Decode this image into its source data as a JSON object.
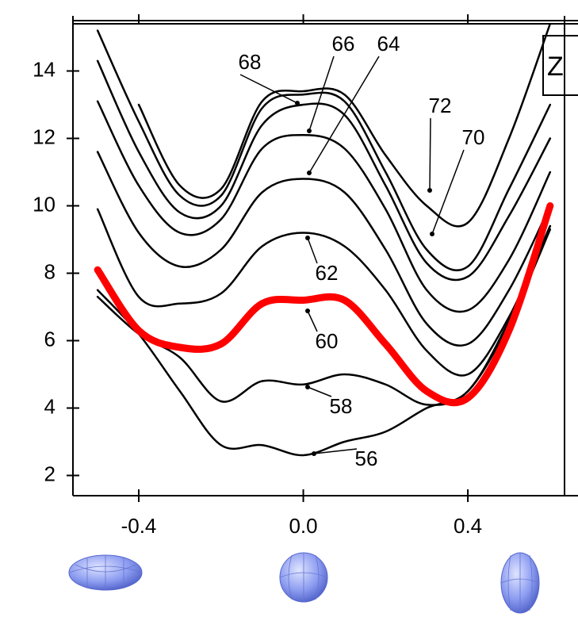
{
  "chart_data": {
    "type": "line",
    "x": [
      -0.5,
      -0.4,
      -0.3,
      -0.2,
      -0.1,
      0,
      0.1,
      0.2,
      0.3,
      0.4,
      0.5,
      0.6
    ],
    "series": [
      {
        "name": "56",
        "color": "#000000",
        "values": [
          7.5,
          6.2,
          4.5,
          2.9,
          2.9,
          2.6,
          3.0,
          3.3,
          4.0,
          4.5,
          6.5,
          9.3
        ]
      },
      {
        "name": "58",
        "color": "#000000",
        "values": [
          7.3,
          6.2,
          5.5,
          4.2,
          4.8,
          4.7,
          5.0,
          4.7,
          4.1,
          4.5,
          6.6,
          9.4
        ]
      },
      {
        "name": "60",
        "color": "#ff0000",
        "values": [
          8.1,
          6.3,
          5.8,
          5.9,
          7.1,
          7.2,
          7.2,
          5.9,
          4.5,
          4.3,
          6.3,
          10.0
        ]
      },
      {
        "name": "62",
        "color": "#000000",
        "values": [
          9.9,
          7.3,
          7.1,
          7.4,
          8.8,
          9.2,
          8.8,
          7.5,
          5.7,
          5.0,
          6.7,
          9.4
        ]
      },
      {
        "name": "64",
        "color": "#000000",
        "values": [
          11.6,
          9.2,
          8.2,
          8.7,
          10.4,
          10.8,
          10.4,
          8.7,
          6.5,
          5.9,
          7.5,
          10.0
        ]
      },
      {
        "name": "66",
        "color": "#000000",
        "values": [
          13.1,
          10.6,
          9.2,
          9.6,
          11.7,
          12.1,
          11.7,
          9.9,
          7.5,
          6.9,
          8.4,
          11.0
        ]
      },
      {
        "name": "68",
        "color": "#000000",
        "values": [
          14.3,
          11.6,
          9.8,
          10.0,
          12.4,
          13.0,
          12.7,
          10.6,
          8.3,
          7.9,
          9.7,
          12.0
        ]
      },
      {
        "name": "70",
        "color": "#000000",
        "values": [
          15.2,
          12.5,
          10.3,
          10.3,
          12.9,
          13.3,
          13.1,
          11.0,
          8.7,
          8.2,
          10.5,
          13.0
        ]
      },
      {
        "name": "72",
        "color": "#000000",
        "values": [
          null,
          13.0,
          10.6,
          10.5,
          13.1,
          13.4,
          13.3,
          11.5,
          10.0,
          9.5,
          12.0,
          15.4
        ]
      }
    ],
    "inset_label": "Z",
    "xlim": [
      -0.56,
      0.635
    ],
    "ylim": [
      1.4,
      15.4
    ],
    "xticks": [
      -0.4,
      {
        "value": 0,
        "label": "0.0"
      },
      0.4
    ],
    "yticks": [
      2,
      4,
      6,
      8,
      10,
      12,
      14
    ],
    "grid": false
  }
}
